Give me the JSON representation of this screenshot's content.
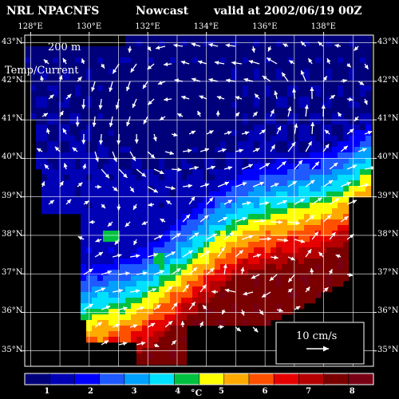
{
  "header": {
    "model": "NRL NPACNFS",
    "mode": "Nowcast",
    "valid": "valid at 2002/06/19 00Z"
  },
  "overlay": {
    "depth": "200 m",
    "field": "Temp/Current"
  },
  "axes": {
    "lon_labels": [
      "128°E",
      "130°E",
      "132°E",
      "134°E",
      "136°E",
      "138°E"
    ],
    "lat_labels_left": [
      "43°N",
      "42°N",
      "41°N",
      "40°N",
      "39°N",
      "38°N",
      "37°N",
      "36°N",
      "35°N"
    ],
    "lat_labels_right": [
      "43°N",
      "42°N",
      "41°N",
      "40°N",
      "39°N",
      "38°N",
      "37°N",
      "36°N",
      "35°N"
    ],
    "lon_range": [
      127.8,
      139.7
    ],
    "lat_range": [
      34.6,
      43.2
    ]
  },
  "legend": {
    "ticks": [
      "1",
      "2",
      "3",
      "4",
      "5",
      "6",
      "7",
      "8"
    ],
    "unit": "°C",
    "range": [
      0.5,
      8.5
    ]
  },
  "vector_scale": {
    "label": "10 cm/s"
  },
  "colors": {
    "background": "#000000",
    "land": "#000000",
    "text": "#ffffff",
    "palette": [
      "#00007a",
      "#0000b4",
      "#0000ff",
      "#1e5aff",
      "#00a0ff",
      "#00e0ff",
      "#00c040",
      "#ffff00",
      "#ffaa00",
      "#ff5000",
      "#e60000",
      "#b40000",
      "#7a0000",
      "#780014"
    ]
  }
}
